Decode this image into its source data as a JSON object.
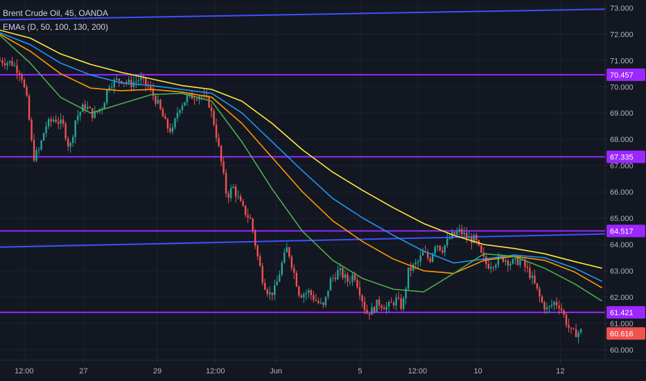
{
  "legend": {
    "symbol_line": "Brent Crude Oil, 45, OANDA",
    "indicator_line": "EMAs (D, 50, 100, 130, 200)"
  },
  "chart_data": {
    "type": "candlestick",
    "y_ticks": [
      "60.000",
      "61.000",
      "62.000",
      "63.000",
      "64.000",
      "65.000",
      "66.000",
      "67.000",
      "68.000",
      "69.000",
      "70.000",
      "71.000",
      "72.000",
      "73.000"
    ],
    "ylim": [
      59.6,
      73.3
    ],
    "x_ticks": [
      {
        "label": "12:00",
        "t": 0.04
      },
      {
        "label": "27",
        "t": 0.138
      },
      {
        "label": "29",
        "t": 0.26
      },
      {
        "label": "12:00",
        "t": 0.356
      },
      {
        "label": "Jun",
        "t": 0.456
      },
      {
        "label": "5",
        "t": 0.595
      },
      {
        "label": "12:00",
        "t": 0.69
      },
      {
        "label": "10",
        "t": 0.79
      },
      {
        "label": "12",
        "t": 0.926
      }
    ],
    "horizontal_levels": [
      {
        "value": 70.457,
        "label": "70.457",
        "color": "#9c27ff"
      },
      {
        "value": 67.335,
        "label": "67.335",
        "color": "#9c27ff"
      },
      {
        "value": 64.517,
        "label": "64.517",
        "color": "#9c27ff"
      },
      {
        "value": 61.421,
        "label": "61.421",
        "color": "#9c27ff"
      }
    ],
    "trend_lines": [
      {
        "from": [
          0,
          72.55
        ],
        "to": [
          1,
          72.95
        ],
        "color": "#3f51ff"
      },
      {
        "from": [
          0,
          63.9
        ],
        "to": [
          1,
          64.4
        ],
        "color": "#3f51ff"
      }
    ],
    "last_price": {
      "value": 60.616,
      "label": "60.616",
      "color": "#ef5350"
    },
    "ema_series": [
      {
        "color": "#ffeb3b",
        "points": [
          [
            0,
            72.15
          ],
          [
            0.05,
            71.85
          ],
          [
            0.1,
            71.25
          ],
          [
            0.15,
            70.85
          ],
          [
            0.2,
            70.55
          ],
          [
            0.25,
            70.3
          ],
          [
            0.3,
            70.05
          ],
          [
            0.35,
            69.9
          ],
          [
            0.4,
            69.45
          ],
          [
            0.45,
            68.6
          ],
          [
            0.5,
            67.6
          ],
          [
            0.55,
            66.75
          ],
          [
            0.6,
            66.05
          ],
          [
            0.65,
            65.4
          ],
          [
            0.7,
            64.8
          ],
          [
            0.75,
            64.35
          ],
          [
            0.8,
            64.0
          ],
          [
            0.85,
            63.85
          ],
          [
            0.9,
            63.65
          ],
          [
            0.95,
            63.35
          ],
          [
            0.995,
            63.1
          ]
        ]
      },
      {
        "color": "#2196f3",
        "points": [
          [
            0,
            72.05
          ],
          [
            0.05,
            71.6
          ],
          [
            0.1,
            70.9
          ],
          [
            0.15,
            70.45
          ],
          [
            0.2,
            70.15
          ],
          [
            0.25,
            70.05
          ],
          [
            0.3,
            69.9
          ],
          [
            0.35,
            69.75
          ],
          [
            0.4,
            69.0
          ],
          [
            0.45,
            67.9
          ],
          [
            0.5,
            66.8
          ],
          [
            0.55,
            65.75
          ],
          [
            0.6,
            65.0
          ],
          [
            0.65,
            64.35
          ],
          [
            0.7,
            63.75
          ],
          [
            0.75,
            63.3
          ],
          [
            0.8,
            63.45
          ],
          [
            0.85,
            63.6
          ],
          [
            0.9,
            63.5
          ],
          [
            0.95,
            63.1
          ],
          [
            0.995,
            62.6
          ]
        ]
      },
      {
        "color": "#ff9800",
        "points": [
          [
            0,
            72.0
          ],
          [
            0.05,
            71.35
          ],
          [
            0.1,
            70.5
          ],
          [
            0.15,
            69.95
          ],
          [
            0.2,
            69.85
          ],
          [
            0.25,
            69.9
          ],
          [
            0.3,
            69.8
          ],
          [
            0.35,
            69.6
          ],
          [
            0.4,
            68.6
          ],
          [
            0.45,
            67.3
          ],
          [
            0.5,
            66.0
          ],
          [
            0.55,
            64.9
          ],
          [
            0.6,
            64.1
          ],
          [
            0.65,
            63.45
          ],
          [
            0.7,
            63.0
          ],
          [
            0.75,
            62.9
          ],
          [
            0.8,
            63.4
          ],
          [
            0.85,
            63.55
          ],
          [
            0.9,
            63.4
          ],
          [
            0.95,
            62.95
          ],
          [
            0.995,
            62.35
          ]
        ]
      },
      {
        "color": "#4caf50",
        "points": [
          [
            0,
            71.95
          ],
          [
            0.05,
            70.9
          ],
          [
            0.1,
            69.6
          ],
          [
            0.15,
            69.0
          ],
          [
            0.2,
            69.35
          ],
          [
            0.25,
            69.7
          ],
          [
            0.3,
            69.75
          ],
          [
            0.35,
            69.45
          ],
          [
            0.4,
            67.9
          ],
          [
            0.45,
            66.1
          ],
          [
            0.5,
            64.5
          ],
          [
            0.55,
            63.4
          ],
          [
            0.6,
            62.7
          ],
          [
            0.65,
            62.3
          ],
          [
            0.7,
            62.2
          ],
          [
            0.75,
            62.9
          ],
          [
            0.8,
            63.65
          ],
          [
            0.85,
            63.55
          ],
          [
            0.9,
            63.1
          ],
          [
            0.95,
            62.5
          ],
          [
            0.995,
            61.85
          ]
        ]
      }
    ],
    "price_path": [
      [
        0,
        71.0
      ],
      [
        0.02,
        70.9
      ],
      [
        0.035,
        70.5
      ],
      [
        0.045,
        69.4
      ],
      [
        0.055,
        67.3
      ],
      [
        0.065,
        67.6
      ],
      [
        0.075,
        68.5
      ],
      [
        0.09,
        68.8
      ],
      [
        0.105,
        68.5
      ],
      [
        0.115,
        67.6
      ],
      [
        0.125,
        68.8
      ],
      [
        0.14,
        69.3
      ],
      [
        0.155,
        68.9
      ],
      [
        0.17,
        69.3
      ],
      [
        0.18,
        70.1
      ],
      [
        0.2,
        70.3
      ],
      [
        0.215,
        70.1
      ],
      [
        0.23,
        70.3
      ],
      [
        0.245,
        70.0
      ],
      [
        0.26,
        69.4
      ],
      [
        0.275,
        68.5
      ],
      [
        0.285,
        68.3
      ],
      [
        0.295,
        69.2
      ],
      [
        0.31,
        69.6
      ],
      [
        0.33,
        69.7
      ],
      [
        0.345,
        69.4
      ],
      [
        0.355,
        68.5
      ],
      [
        0.365,
        67.2
      ],
      [
        0.375,
        65.8
      ],
      [
        0.385,
        66.2
      ],
      [
        0.4,
        65.4
      ],
      [
        0.415,
        64.9
      ],
      [
        0.425,
        63.6
      ],
      [
        0.435,
        62.6
      ],
      [
        0.445,
        62.1
      ],
      [
        0.455,
        62.3
      ],
      [
        0.465,
        63.2
      ],
      [
        0.475,
        63.9
      ],
      [
        0.485,
        63.0
      ],
      [
        0.495,
        62.1
      ],
      [
        0.51,
        62.2
      ],
      [
        0.525,
        61.8
      ],
      [
        0.535,
        61.6
      ],
      [
        0.545,
        62.6
      ],
      [
        0.56,
        63.0
      ],
      [
        0.575,
        62.6
      ],
      [
        0.585,
        62.9
      ],
      [
        0.595,
        62.2
      ],
      [
        0.605,
        61.4
      ],
      [
        0.615,
        61.5
      ],
      [
        0.625,
        61.8
      ],
      [
        0.64,
        61.6
      ],
      [
        0.655,
        61.9
      ],
      [
        0.665,
        61.6
      ],
      [
        0.675,
        63.0
      ],
      [
        0.69,
        63.3
      ],
      [
        0.7,
        63.7
      ],
      [
        0.71,
        63.4
      ],
      [
        0.72,
        64.1
      ],
      [
        0.73,
        63.8
      ],
      [
        0.745,
        64.3
      ],
      [
        0.76,
        64.5
      ],
      [
        0.775,
        64.2
      ],
      [
        0.785,
        64.2
      ],
      [
        0.795,
        63.6
      ],
      [
        0.805,
        63.2
      ],
      [
        0.815,
        63.3
      ],
      [
        0.83,
        63.5
      ],
      [
        0.845,
        63.3
      ],
      [
        0.86,
        63.4
      ],
      [
        0.875,
        62.9
      ],
      [
        0.885,
        62.4
      ],
      [
        0.895,
        61.8
      ],
      [
        0.905,
        61.5
      ],
      [
        0.915,
        61.8
      ],
      [
        0.925,
        61.7
      ],
      [
        0.935,
        61.1
      ],
      [
        0.945,
        60.6
      ],
      [
        0.96,
        60.7
      ]
    ]
  }
}
